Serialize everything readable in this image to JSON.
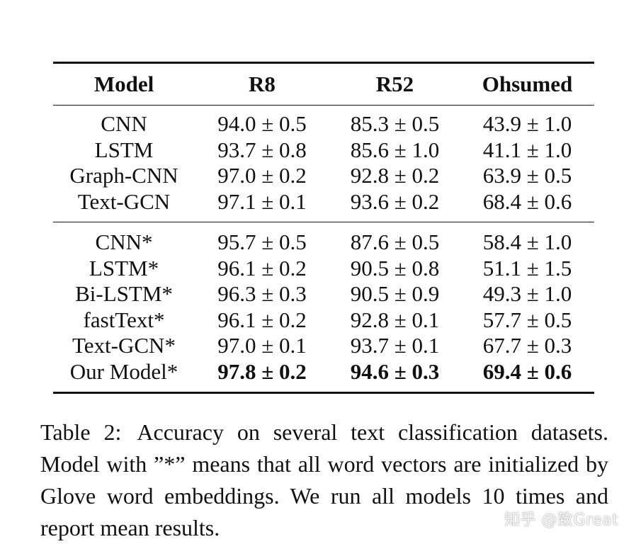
{
  "table": {
    "headers": [
      "Model",
      "R8",
      "R52",
      "Ohsumed"
    ],
    "group1": [
      {
        "model": "CNN",
        "r8": "94.0 ± 0.5",
        "r52": "85.3 ± 0.5",
        "ohsumed": "43.9 ± 1.0"
      },
      {
        "model": "LSTM",
        "r8": "93.7 ± 0.8",
        "r52": "85.6 ± 1.0",
        "ohsumed": "41.1 ± 1.0"
      },
      {
        "model": "Graph-CNN",
        "r8": "97.0 ± 0.2",
        "r52": "92.8 ± 0.2",
        "ohsumed": "63.9 ± 0.5"
      },
      {
        "model": "Text-GCN",
        "r8": "97.1 ± 0.1",
        "r52": "93.6 ± 0.2",
        "ohsumed": "68.4 ± 0.6"
      }
    ],
    "group2": [
      {
        "model": "CNN*",
        "r8": "95.7 ± 0.5",
        "r52": "87.6 ± 0.5",
        "ohsumed": "58.4 ± 1.0"
      },
      {
        "model": "LSTM*",
        "r8": "96.1 ± 0.2",
        "r52": "90.5 ± 0.8",
        "ohsumed": "51.1 ± 1.5"
      },
      {
        "model": "Bi-LSTM*",
        "r8": "96.3 ± 0.3",
        "r52": "90.5 ± 0.9",
        "ohsumed": "49.3 ± 1.0"
      },
      {
        "model": "fastText*",
        "r8": "96.1 ± 0.2",
        "r52": "92.8 ± 0.1",
        "ohsumed": "57.7 ± 0.5"
      },
      {
        "model": "Text-GCN*",
        "r8": "97.0 ± 0.1",
        "r52": "93.7 ± 0.1",
        "ohsumed": "67.7 ± 0.3"
      },
      {
        "model": "Our Model*",
        "r8": "97.8 ± 0.2",
        "r52": "94.6 ± 0.3",
        "ohsumed": "69.4 ± 0.6"
      }
    ]
  },
  "caption": {
    "label": "Table 2:",
    "text": "Accuracy on several text classification datasets. Model with ”*” means that all word vectors are initialized by Glove word embeddings. We run all models 10 times and report mean results."
  },
  "watermark": "知乎 @致Great"
}
